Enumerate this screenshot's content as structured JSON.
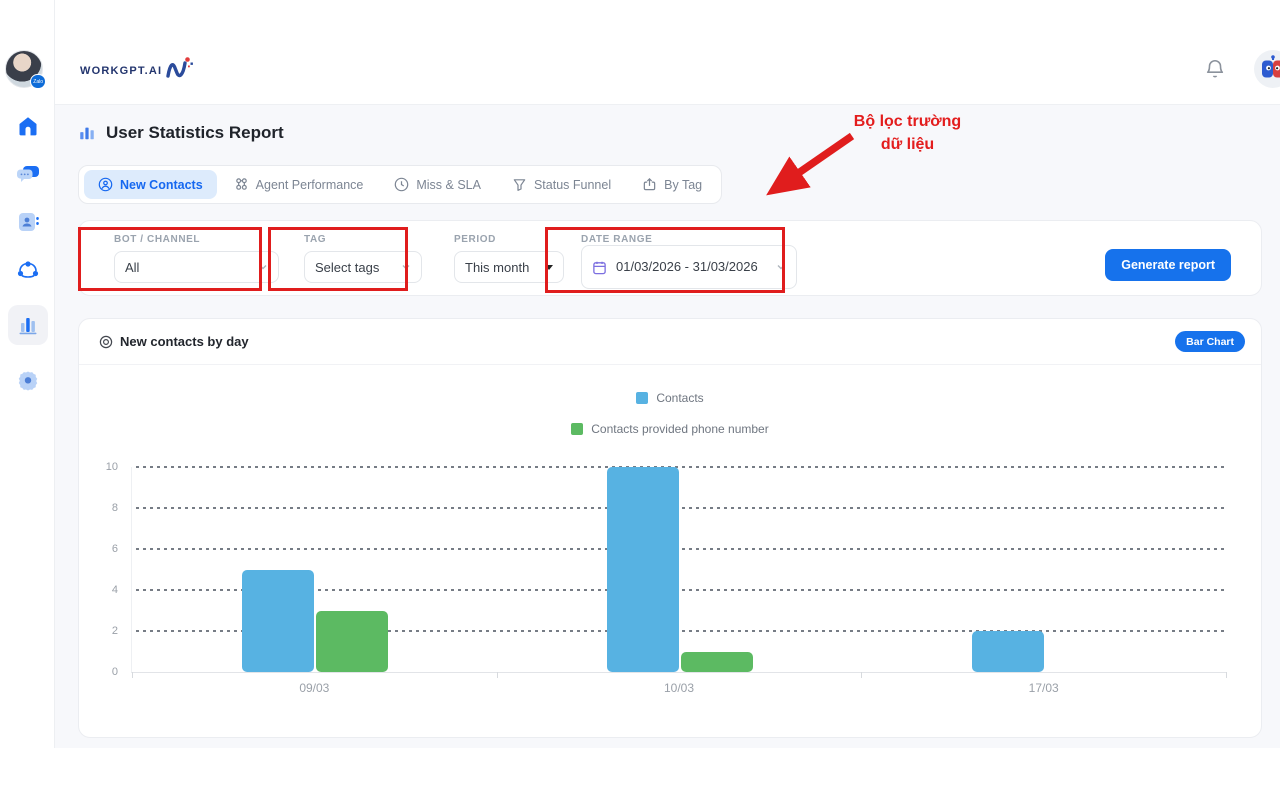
{
  "header": {
    "logo_text": "WORKGPT.AI",
    "avatar_badge": "Zalo"
  },
  "sidebar": {
    "items": [
      {
        "icon": "home-icon"
      },
      {
        "icon": "chat-icon"
      },
      {
        "icon": "contacts-book-icon"
      },
      {
        "icon": "share-nodes-icon"
      },
      {
        "icon": "bar-chart-icon",
        "active": true
      },
      {
        "icon": "gear-icon"
      }
    ]
  },
  "page": {
    "title": "User Statistics Report"
  },
  "tabs": [
    {
      "label": "New Contacts",
      "icon": "user-circle-icon",
      "active": true
    },
    {
      "label": "Agent Performance",
      "icon": "org-nodes-icon",
      "active": false
    },
    {
      "label": "Miss & SLA",
      "icon": "clock-icon",
      "active": false
    },
    {
      "label": "Status Funnel",
      "icon": "funnel-icon",
      "active": false
    },
    {
      "label": "By Tag",
      "icon": "share-box-icon",
      "active": false
    }
  ],
  "filters": {
    "bot_channel": {
      "label": "BOT / CHANNEL",
      "value": "All"
    },
    "tag": {
      "label": "TAG",
      "placeholder": "Select tags"
    },
    "period": {
      "label": "PERIOD",
      "value": "This month"
    },
    "date_range": {
      "label": "DATE RANGE",
      "value": "01/03/2026 - 31/03/2026"
    },
    "generate_button": "Generate report"
  },
  "annotation": {
    "line1": "Bộ lọc trường",
    "line2": "dữ liệu",
    "color": "#e31d1d"
  },
  "chart_card": {
    "title": "New contacts by day",
    "type_button": "Bar Chart"
  },
  "chart_data": {
    "type": "bar",
    "title": "New contacts by day",
    "categories": [
      "09/03",
      "10/03",
      "17/03"
    ],
    "series": [
      {
        "name": "Contacts",
        "color": "#57b2e2",
        "values": [
          5,
          10,
          2
        ]
      },
      {
        "name": "Contacts provided phone number",
        "color": "#5cba62",
        "values": [
          3,
          1,
          0
        ]
      }
    ],
    "xlabel": "",
    "ylabel": "",
    "ylim": [
      0,
      10
    ],
    "yticks": [
      0,
      2,
      4,
      6,
      8,
      10
    ],
    "grid": "horizontal-dashed",
    "legend_position": "top-center-stacked"
  },
  "colors": {
    "primary": "#1672ec",
    "annotation_red": "#e31d1d",
    "bar_blue": "#57b2e2",
    "bar_green": "#5cba62"
  }
}
